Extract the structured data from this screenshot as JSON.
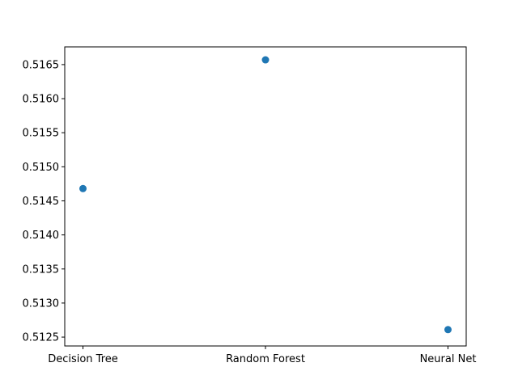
{
  "chart_data": {
    "type": "scatter",
    "title": "",
    "xlabel": "",
    "ylabel": "",
    "categories": [
      "Decision Tree",
      "Random Forest",
      "Neural Net"
    ],
    "values": [
      0.51468,
      0.51657,
      0.51261
    ],
    "ylim": [
      0.51237,
      0.51676
    ],
    "yticks": [
      0.5125,
      0.513,
      0.5135,
      0.514,
      0.5145,
      0.515,
      0.5155,
      0.516,
      0.5165
    ],
    "ytick_labels": [
      "0.5125",
      "0.5130",
      "0.5135",
      "0.5140",
      "0.5145",
      "0.5150",
      "0.5155",
      "0.5160",
      "0.5165"
    ],
    "grid": false,
    "marker_color": "#1f77b4"
  }
}
